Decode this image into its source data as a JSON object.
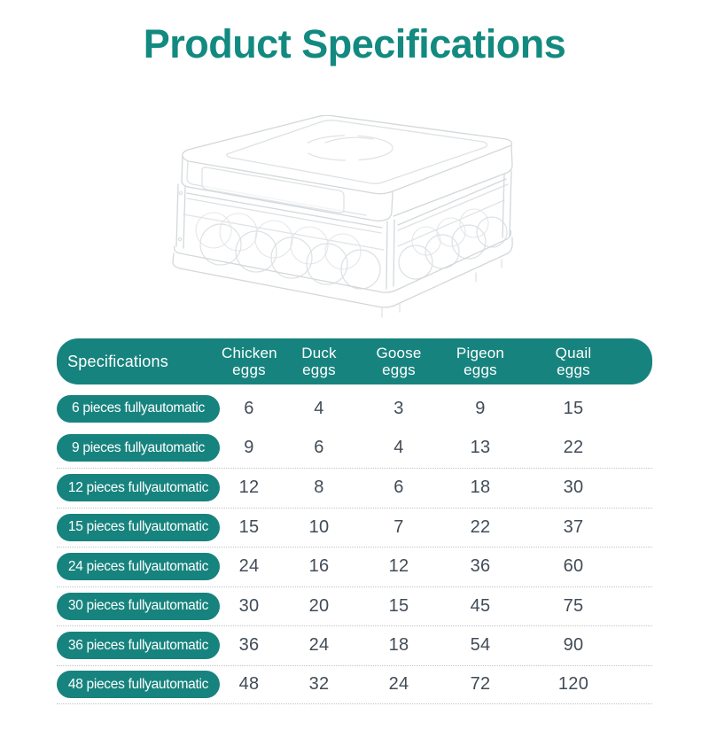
{
  "page": {
    "title": "Product Specifications"
  },
  "colors": {
    "accent_teal": "#17837E",
    "title_teal": "#128A80",
    "value_text": "#414B57",
    "divider": "#BFC4C9"
  },
  "illustration": {
    "name": "egg-incubator-line-drawing"
  },
  "table": {
    "header": {
      "spec_label": "Specifications",
      "columns": [
        {
          "line1": "Chicken",
          "line2": "eggs"
        },
        {
          "line1": "Duck",
          "line2": "eggs"
        },
        {
          "line1": "Goose",
          "line2": "eggs"
        },
        {
          "line1": "Pigeon",
          "line2": "eggs"
        },
        {
          "line1": "Quail",
          "line2": "eggs"
        }
      ]
    },
    "rows": [
      {
        "label": "6 pieces fullyautomatic",
        "values": [
          6,
          4,
          3,
          9,
          15
        ]
      },
      {
        "label": "9 pieces fullyautomatic",
        "values": [
          9,
          6,
          4,
          13,
          22
        ]
      },
      {
        "label": "12 pieces fullyautomatic",
        "values": [
          12,
          8,
          6,
          18,
          30
        ]
      },
      {
        "label": "15 pieces fullyautomatic",
        "values": [
          15,
          10,
          7,
          22,
          37
        ]
      },
      {
        "label": "24 pieces fullyautomatic",
        "values": [
          24,
          16,
          12,
          36,
          60
        ]
      },
      {
        "label": "30 pieces fullyautomatic",
        "values": [
          30,
          20,
          15,
          45,
          75
        ]
      },
      {
        "label": "36 pieces fullyautomatic",
        "values": [
          36,
          24,
          18,
          54,
          90
        ]
      },
      {
        "label": "48 pieces fullyautomatic",
        "values": [
          48,
          32,
          24,
          72,
          120
        ]
      }
    ]
  }
}
